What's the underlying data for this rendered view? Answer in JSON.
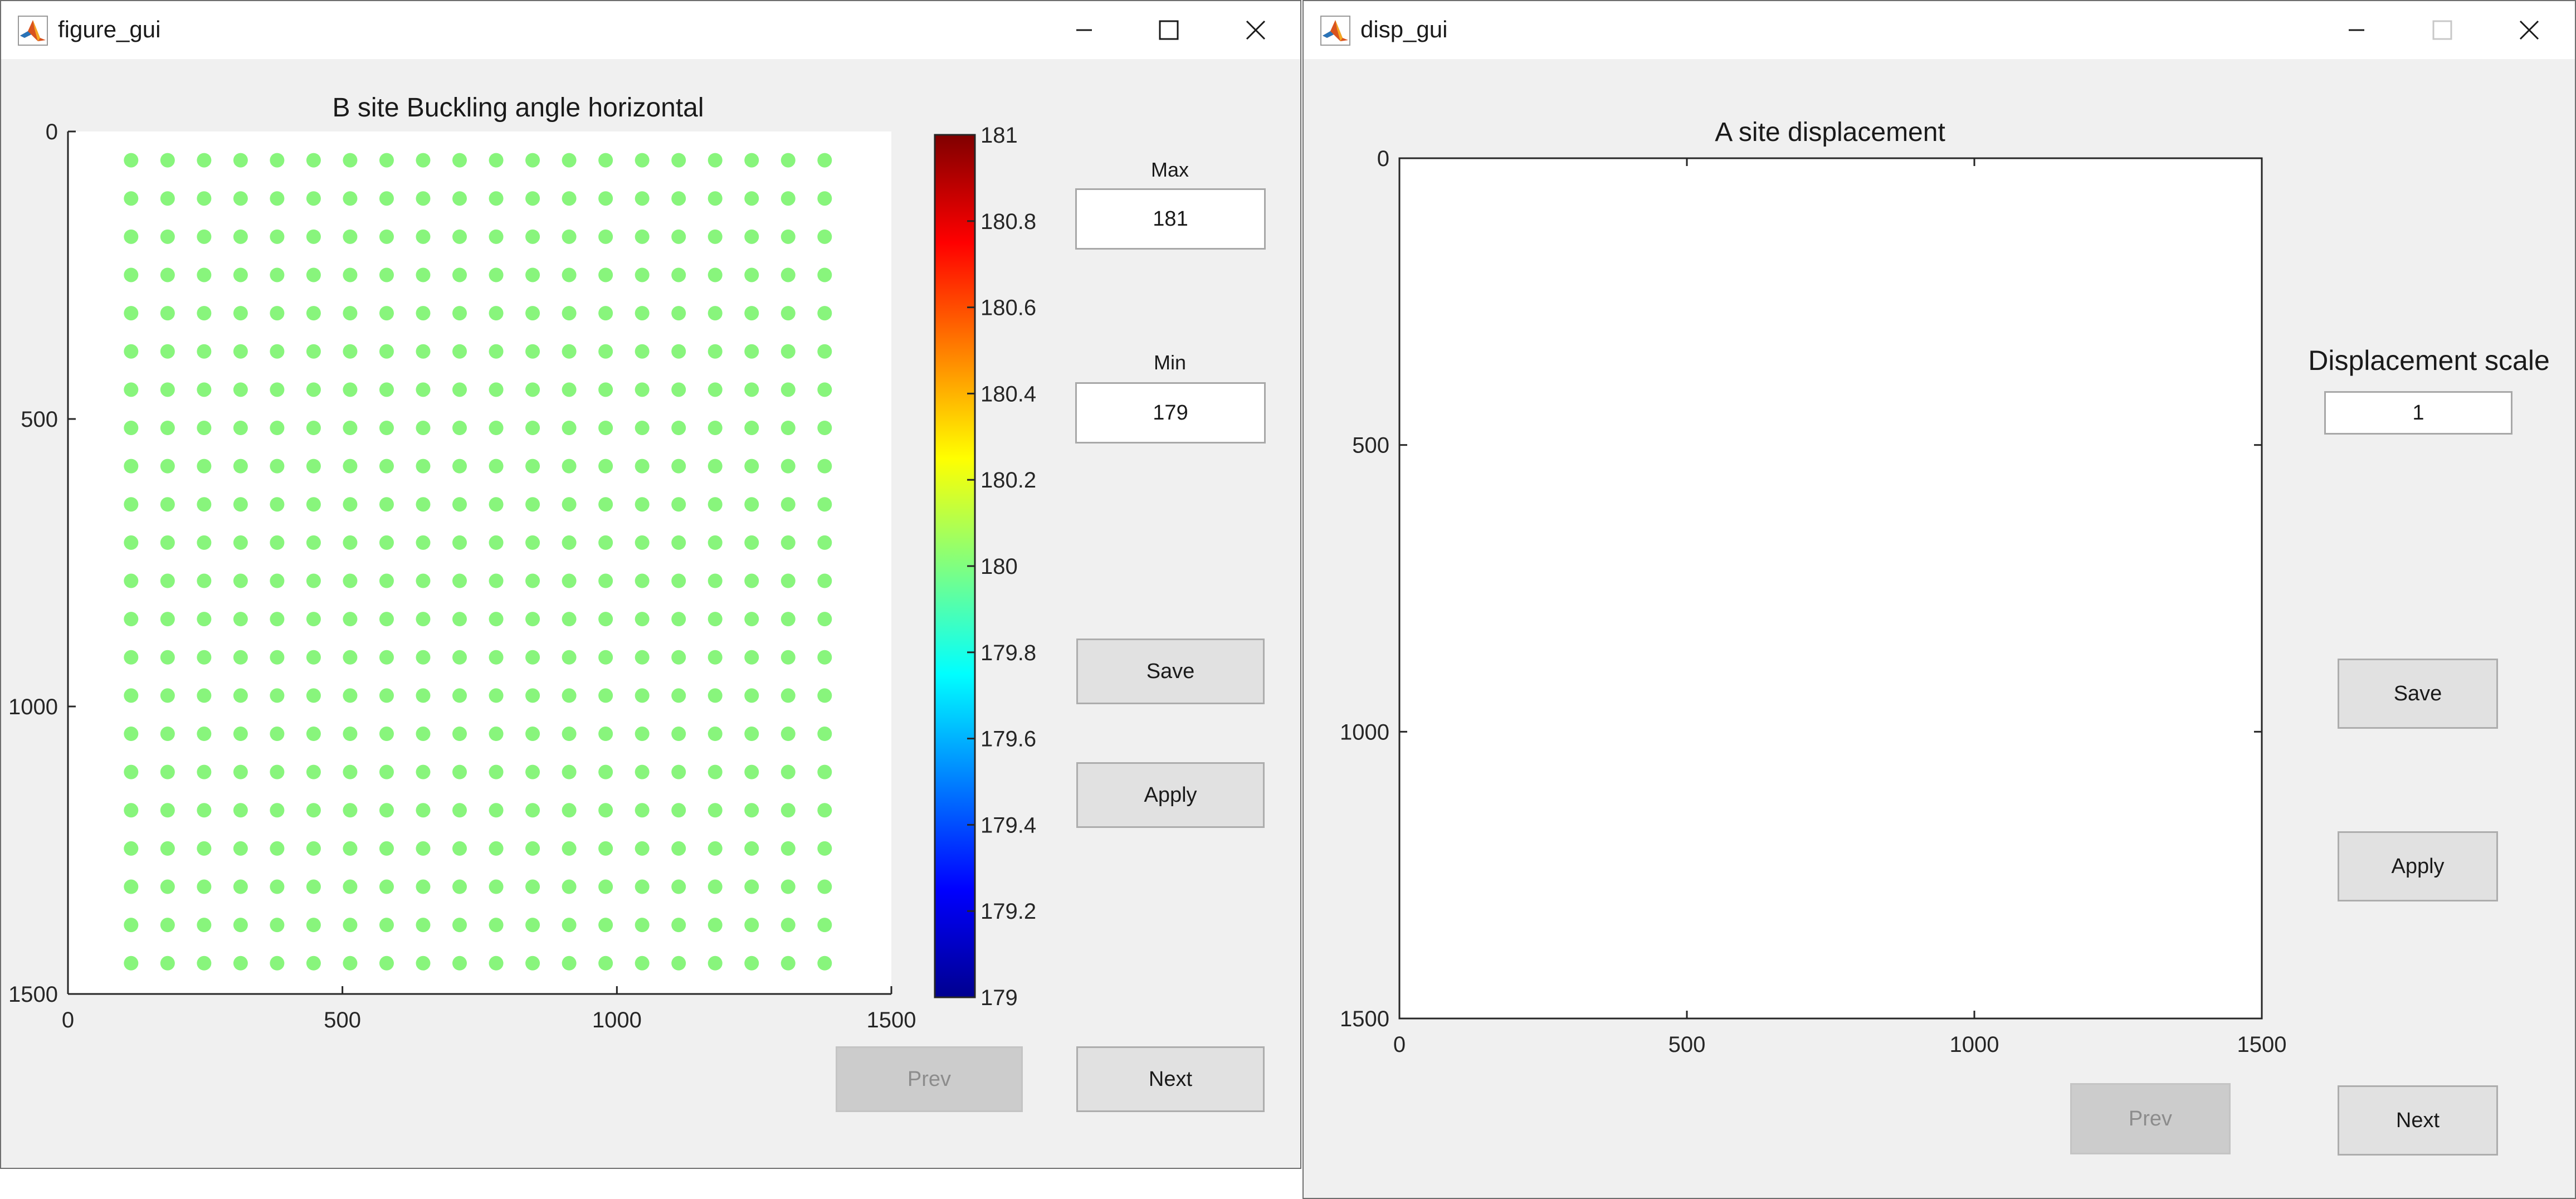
{
  "windows": [
    {
      "title": "figure_gui",
      "controls": {
        "max_label": "Max",
        "max_value": "181",
        "min_label": "Min",
        "min_value": "179",
        "save": "Save",
        "apply": "Apply",
        "prev": "Prev",
        "next": "Next"
      }
    },
    {
      "title": "disp_gui",
      "controls": {
        "scale_label": "Displacement scale",
        "scale_value": "1",
        "save": "Save",
        "apply": "Apply",
        "prev": "Prev",
        "next": "Next"
      }
    }
  ],
  "chart_data": [
    {
      "type": "scatter",
      "title": "B site Buckling angle horizontal",
      "xlim": [
        0,
        1500
      ],
      "ylim": [
        0,
        1500
      ],
      "y_reversed": true,
      "xticks": [
        "0",
        "500",
        "1000",
        "1500"
      ],
      "yticks": [
        "0",
        "500",
        "1000",
        "1500"
      ],
      "grid": {
        "x_start": 115,
        "x_step": 66.5,
        "x_count": 20,
        "y_start": 50,
        "y_step": 66.5,
        "y_count": 22
      },
      "point_value": 180,
      "point_color": "#88f57c",
      "colorbar": {
        "min": 179,
        "max": 181,
        "ticks": [
          "179",
          "179.2",
          "179.4",
          "179.6",
          "179.8",
          "180",
          "180.2",
          "180.4",
          "180.6",
          "180.8",
          "181"
        ],
        "colormap": "jet"
      }
    },
    {
      "type": "scatter",
      "title": "A site displacement",
      "xlim": [
        0,
        1500
      ],
      "ylim": [
        0,
        1500
      ],
      "y_reversed": true,
      "xticks": [
        "0",
        "500",
        "1000",
        "1500"
      ],
      "yticks": [
        "0",
        "500",
        "1000",
        "1500"
      ]
    }
  ]
}
